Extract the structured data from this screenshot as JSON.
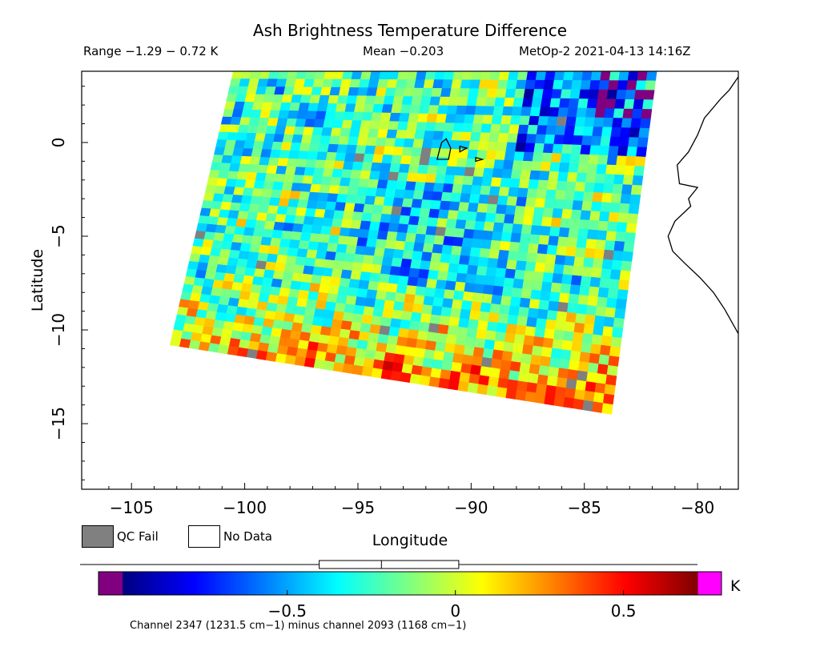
{
  "chart_data": {
    "type": "heatmap",
    "title": "Ash Brightness Temperature Difference",
    "subtitle_range": "Range −1.29 − 0.72 K",
    "subtitle_mean": "Mean −0.203",
    "subtitle_satellite": "MetOp-2 2021-04-13 14:16Z",
    "xlabel": "Longitude",
    "ylabel": "Latitude",
    "xlim": [
      -107.2,
      -78.2
    ],
    "ylim": [
      -18.5,
      3.8
    ],
    "x_ticks": [
      -105,
      -100,
      -95,
      -90,
      -85,
      -80
    ],
    "x_tick_labels": [
      "−105",
      "−100",
      "−95",
      "−90",
      "−85",
      "−80"
    ],
    "y_ticks": [
      0,
      -5,
      -10,
      -15
    ],
    "y_tick_labels": [
      "0",
      "−5",
      "−10",
      "−15"
    ],
    "swath_corners": {
      "top_left": [
        -100.5,
        3.8
      ],
      "top_right": [
        -81.8,
        3.8
      ],
      "bottom_right": [
        -83.8,
        -14.5
      ],
      "bottom_left": [
        -103.3,
        -10.8
      ]
    },
    "grid_rows": 36,
    "grid_cols": 46,
    "value_range": [
      -1.29,
      0.72
    ],
    "mean": -0.203,
    "colorbar": {
      "unit": "K",
      "vmin": -0.99,
      "vmax": 0.72,
      "ticks": [
        -0.5,
        0,
        0.5
      ],
      "tick_labels": [
        "−0.5",
        "0",
        "0.5"
      ],
      "under_color": "#800080",
      "over_color": "#ff00ff",
      "box_whisker": {
        "whisker_low": -0.99,
        "q1": -0.405,
        "median": -0.22,
        "q3": 0.01,
        "whisker_high": 0.72
      }
    },
    "legend": [
      {
        "label": "QC Fail",
        "color": "#808080"
      },
      {
        "label": "No Data",
        "color": "#ffffff"
      }
    ],
    "footer": "Channel 2347 (1231.5 cm−1) minus channel 2093 (1168 cm−1)"
  }
}
